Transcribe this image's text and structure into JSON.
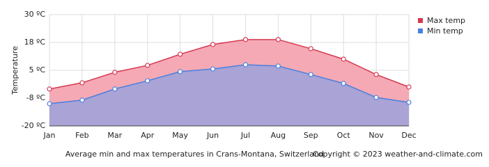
{
  "chart_data": {
    "type": "area-line",
    "y_label": "Temperature",
    "caption": "Average min and max temperatures in Crans-Montana, Switzerland",
    "copyright": "Copyright © 2023  weather-and-climate.com",
    "categories": [
      "Jan",
      "Feb",
      "Mar",
      "Apr",
      "May",
      "Jun",
      "Jul",
      "Aug",
      "Sep",
      "Oct",
      "Nov",
      "Dec"
    ],
    "series": [
      {
        "name": "Max temp",
        "color": "#d7384f",
        "fill": "#f5a9b4",
        "values": [
          -3.4,
          -0.6,
          4.1,
          7.2,
          12.2,
          16.6,
          18.8,
          18.8,
          14.7,
          10,
          3.1,
          -2.5
        ]
      },
      {
        "name": "Min temp",
        "color": "#4a7fe0",
        "fill": "#a9a3d6",
        "values": [
          -10,
          -8.4,
          -3.4,
          0.3,
          4.4,
          5.6,
          7.5,
          6.9,
          3.1,
          -0.9,
          -7.2,
          -9.4
        ]
      }
    ],
    "ylim": [
      -20,
      30
    ],
    "yticks": [
      {
        "value": 30,
        "label": "30 ºC"
      },
      {
        "value": 17.5,
        "label": "18 ºC"
      },
      {
        "value": 5,
        "label": "5 ºC"
      },
      {
        "value": -7.5,
        "label": "-8 ºC"
      },
      {
        "value": -20,
        "label": "-20 ºC"
      }
    ],
    "grid": true,
    "legend": "top-right"
  }
}
